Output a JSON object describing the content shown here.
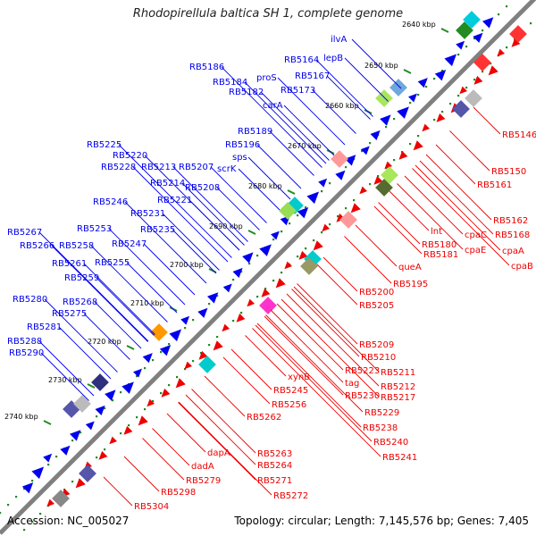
{
  "title": "Rhodopirellula baltica SH 1, complete genome",
  "footer": {
    "accession": "Accession: NC_005027",
    "summary": "Topology: circular; Length: 7,145,576 bp; Genes: 7,405"
  },
  "ruler": [
    "2640 kbp",
    "2650 kbp",
    "2660 kbp",
    "2670 kbp",
    "2680 kbp",
    "2690 kbp",
    "2700 kbp",
    "2710 kbp",
    "2720 kbp",
    "2730 kbp",
    "2740 kbp"
  ],
  "plus_labels": [
    "ilvA",
    "lepB",
    "RB5164",
    "proS",
    "RB5167",
    "RB5186",
    "RB5184",
    "RB5182",
    "RB5173",
    "carA",
    "RB5189",
    "RB5196",
    "sps",
    "RB5225",
    "RB5220",
    "RB5228",
    "RB5213",
    "RB5207",
    "scrK",
    "RB5214",
    "RB5208",
    "RB5246",
    "RB5231",
    "RB5221",
    "RB5253",
    "RB5235",
    "RB5247",
    "RB5267",
    "RB5266",
    "RB5258",
    "RB5255",
    "RB5261",
    "RB5259",
    "RB5280",
    "RB5268",
    "RB5275",
    "RB5281",
    "RB5288",
    "RB5290"
  ],
  "minus_labels": [
    "RB5146",
    "RB5150",
    "RB5161",
    "RB5162",
    "RB5168",
    "cpaC",
    "lnt",
    "RB5180",
    "cpaA",
    "cpaE",
    "RB5181",
    "cpaB",
    "queA",
    "RB5195",
    "RB5200",
    "RB5205",
    "RB5209",
    "RB5210",
    "RB5211",
    "RB5212",
    "RB5217",
    "RB5223",
    "tag",
    "RB5230",
    "xynB",
    "RB5245",
    "RB5229",
    "RB5238",
    "RB5240",
    "RB5241",
    "RB5256",
    "RB5262",
    "RB5263",
    "RB5264",
    "dapA",
    "RB5271",
    "dadA",
    "RB5272",
    "RB5279",
    "RB5298",
    "RB5304"
  ],
  "colors": {
    "plus_strand": "#0000ee",
    "minus_strand": "#ee0000",
    "backbone": "#808080",
    "ruler_dots": "#228b22",
    "ruler_text": "#000000"
  }
}
